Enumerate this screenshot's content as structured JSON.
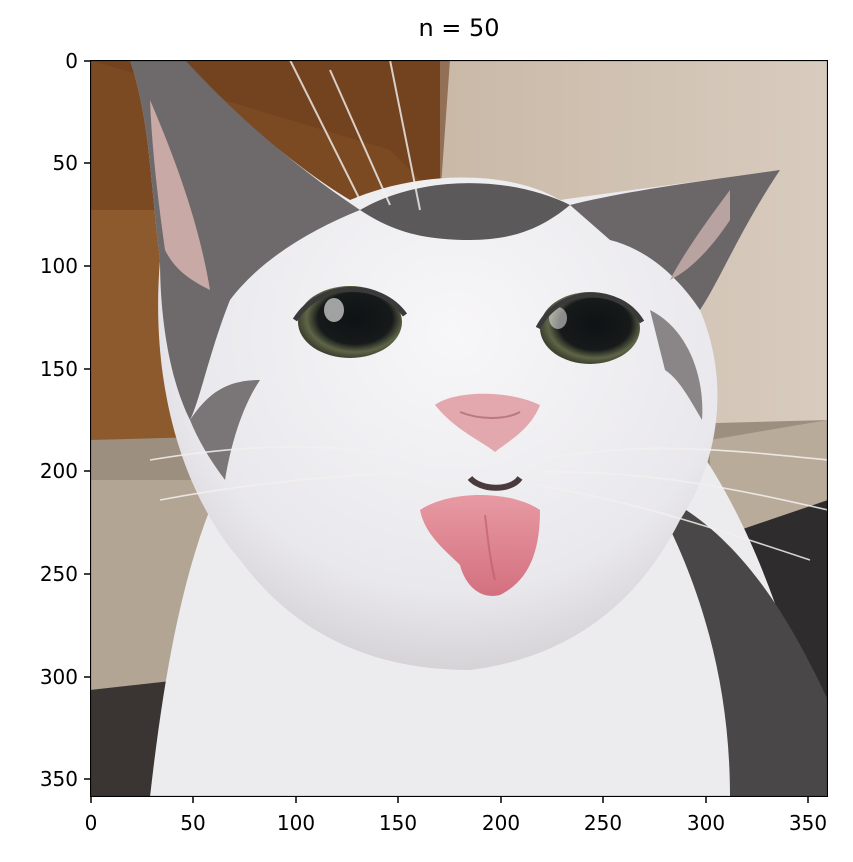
{
  "figure": {
    "title": "n = 50",
    "x_ticks": [
      "0",
      "50",
      "100",
      "150",
      "200",
      "250",
      "300",
      "350"
    ],
    "y_ticks": [
      "0",
      "50",
      "100",
      "150",
      "200",
      "250",
      "300",
      "350"
    ],
    "image_subject": "cat-face-tongue-out"
  }
}
